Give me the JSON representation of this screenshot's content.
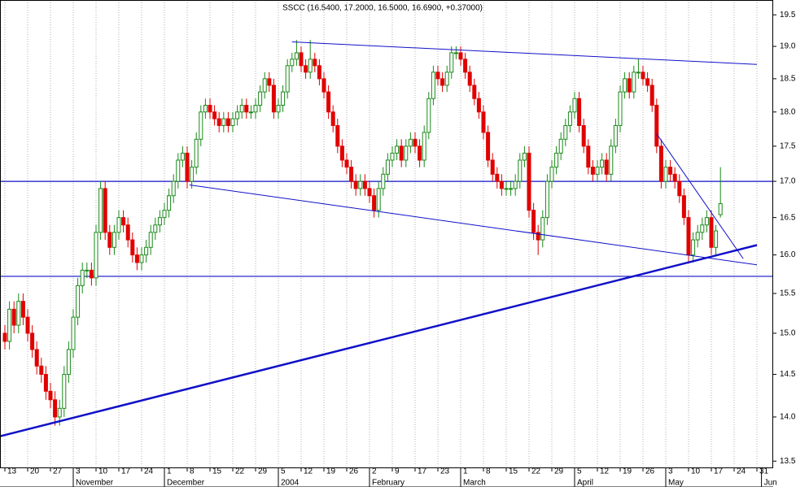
{
  "chart_data": {
    "type": "candlestick",
    "title": "SSCC (16.5400, 17.2000, 16.5000, 16.6900, +0.37000)",
    "log_scale": true,
    "up_color": "#1a8a1a",
    "down_color": "#e00000",
    "line_color": "#1010c8",
    "categories": [
      "13",
      null,
      null,
      null,
      null,
      "20",
      null,
      null,
      null,
      null,
      "27",
      null,
      null,
      null,
      null,
      "3",
      null,
      null,
      null,
      null,
      "10",
      null,
      null,
      null,
      null,
      "17",
      null,
      null,
      null,
      null,
      "24",
      null,
      null,
      null,
      null,
      "1",
      null,
      null,
      null,
      null,
      "8",
      null,
      null,
      null,
      null,
      "15",
      null,
      null,
      null,
      null,
      "22",
      null,
      null,
      null,
      null,
      "29",
      null,
      null,
      null,
      null,
      "5",
      null,
      null,
      null,
      null,
      "12",
      null,
      null,
      null,
      null,
      "19",
      null,
      null,
      null,
      null,
      "26",
      null,
      null,
      null,
      null,
      "2",
      null,
      null,
      null,
      null,
      "9",
      null,
      null,
      null,
      null,
      "17",
      null,
      null,
      null,
      null,
      "23",
      null,
      null,
      null,
      null,
      "1",
      null,
      null,
      null,
      null,
      "8",
      null,
      null,
      null,
      null,
      "15",
      null,
      null,
      null,
      null,
      "22",
      null,
      null,
      null,
      null,
      "29",
      null,
      null,
      null,
      null,
      "5",
      null,
      null,
      null,
      null,
      "12",
      null,
      null,
      null,
      null,
      "19",
      null,
      null,
      null,
      null,
      "26",
      null,
      null,
      null,
      null,
      "3",
      null,
      null,
      null,
      null,
      "10",
      null,
      null,
      null,
      null,
      "17",
      null,
      null,
      null,
      null,
      "24",
      null,
      null,
      null,
      null,
      "31",
      null
    ],
    "months": [
      null,
      null,
      null,
      null,
      null,
      null,
      null,
      null,
      null,
      null,
      null,
      null,
      null,
      null,
      null,
      "November",
      null,
      null,
      null,
      null,
      null,
      null,
      null,
      null,
      null,
      null,
      null,
      null,
      null,
      null,
      null,
      null,
      null,
      null,
      null,
      "December",
      null,
      null,
      null,
      null,
      null,
      null,
      null,
      null,
      null,
      null,
      null,
      null,
      null,
      null,
      null,
      null,
      null,
      null,
      null,
      null,
      null,
      null,
      null,
      null,
      "2004",
      null,
      null,
      null,
      null,
      null,
      null,
      null,
      null,
      null,
      null,
      null,
      null,
      null,
      null,
      null,
      null,
      null,
      null,
      null,
      "February",
      null,
      null,
      null,
      null,
      null,
      null,
      null,
      null,
      null,
      null,
      null,
      null,
      null,
      null,
      null,
      null,
      null,
      null,
      null,
      "March",
      null,
      null,
      null,
      null,
      null,
      null,
      null,
      null,
      null,
      null,
      null,
      null,
      null,
      null,
      null,
      null,
      null,
      null,
      null,
      null,
      null,
      null,
      null,
      null,
      "April",
      null,
      null,
      null,
      null,
      null,
      null,
      null,
      null,
      null,
      null,
      null,
      null,
      null,
      null,
      null,
      null,
      null,
      null,
      null,
      "May",
      null,
      null,
      null,
      null,
      null,
      null,
      null,
      null,
      null,
      null,
      null,
      null,
      null,
      null,
      null,
      null,
      null,
      null,
      null,
      null,
      "Jun"
    ],
    "open": [
      15.0,
      14.9,
      15.3,
      15.1,
      15.4,
      15.2,
      15.0,
      14.8,
      14.6,
      14.5,
      14.3,
      14.2,
      14.0,
      14.1,
      14.5,
      14.8,
      15.2,
      15.6,
      15.8,
      15.8,
      15.7,
      16.3,
      16.9,
      16.3,
      16.1,
      16.3,
      16.5,
      16.4,
      16.2,
      16.0,
      15.9,
      16.0,
      16.1,
      16.3,
      16.4,
      16.5,
      16.6,
      16.8,
      17.0,
      17.3,
      17.4,
      17.0,
      17.2,
      17.6,
      18.0,
      18.1,
      18.0,
      17.9,
      17.8,
      17.9,
      17.8,
      17.9,
      18.0,
      18.1,
      18.0,
      18.0,
      18.1,
      18.3,
      18.5,
      18.4,
      18.0,
      18.1,
      18.3,
      18.7,
      18.8,
      18.9,
      18.7,
      18.6,
      18.8,
      18.7,
      18.5,
      18.3,
      18.0,
      17.8,
      17.5,
      17.3,
      17.2,
      17.0,
      16.9,
      17.0,
      16.9,
      16.8,
      16.6,
      16.9,
      17.1,
      17.3,
      17.4,
      17.5,
      17.3,
      17.5,
      17.6,
      17.5,
      17.3,
      17.7,
      18.2,
      18.6,
      18.5,
      18.4,
      18.6,
      18.9,
      18.9,
      18.8,
      18.6,
      18.4,
      18.2,
      18.0,
      17.7,
      17.3,
      17.1,
      17.0,
      16.9,
      16.9,
      16.9,
      17.0,
      17.3,
      17.4,
      16.6,
      16.3,
      16.2,
      16.5,
      17.0,
      17.2,
      17.4,
      17.6,
      17.8,
      18.0,
      18.2,
      17.8,
      17.5,
      17.2,
      17.1,
      17.2,
      17.3,
      17.1,
      17.5,
      17.8,
      18.3,
      18.5,
      18.3,
      18.6,
      18.6,
      18.5,
      18.4,
      18.1,
      17.5,
      17.0,
      17.2,
      17.1,
      17.0,
      16.8,
      16.5,
      16.0,
      16.2,
      16.3,
      16.4,
      16.5,
      16.1,
      16.54,
      null,
      null,
      null,
      null,
      null,
      null,
      null,
      null,
      null
    ],
    "high": [
      15.1,
      15.4,
      15.4,
      15.5,
      15.5,
      15.3,
      15.1,
      14.9,
      14.7,
      14.6,
      14.4,
      14.3,
      14.2,
      14.6,
      14.9,
      15.3,
      15.7,
      15.9,
      15.9,
      15.9,
      16.4,
      17.0,
      17.0,
      16.4,
      16.4,
      16.6,
      16.6,
      16.5,
      16.3,
      16.1,
      16.1,
      16.2,
      16.4,
      16.5,
      16.6,
      16.7,
      16.9,
      17.1,
      17.4,
      17.5,
      17.5,
      17.3,
      17.7,
      18.1,
      18.2,
      18.2,
      18.1,
      18.0,
      18.0,
      18.0,
      18.0,
      18.1,
      18.2,
      18.2,
      18.1,
      18.2,
      18.4,
      18.6,
      18.6,
      18.5,
      18.2,
      18.4,
      18.8,
      18.9,
      19.1,
      19.0,
      18.8,
      19.1,
      18.9,
      18.8,
      18.6,
      18.4,
      18.1,
      17.9,
      17.6,
      17.4,
      17.3,
      17.1,
      17.1,
      17.1,
      17.0,
      16.9,
      17.0,
      17.2,
      17.4,
      17.5,
      17.6,
      17.6,
      17.6,
      17.7,
      17.7,
      17.6,
      17.8,
      18.3,
      18.7,
      18.7,
      18.6,
      18.7,
      19.0,
      19.0,
      19.0,
      18.9,
      18.7,
      18.5,
      18.3,
      18.1,
      17.8,
      17.4,
      17.2,
      17.1,
      17.0,
      17.0,
      17.1,
      17.4,
      17.5,
      17.5,
      16.7,
      16.4,
      16.6,
      17.1,
      17.3,
      17.5,
      17.7,
      17.9,
      18.1,
      18.3,
      18.3,
      17.9,
      17.6,
      17.3,
      17.3,
      17.4,
      17.4,
      17.6,
      17.9,
      18.4,
      18.6,
      18.6,
      18.7,
      18.8,
      18.7,
      18.6,
      18.5,
      18.2,
      17.6,
      17.3,
      17.3,
      17.2,
      17.1,
      16.9,
      16.6,
      16.3,
      16.4,
      16.5,
      16.6,
      16.6,
      16.4,
      17.2,
      null,
      null,
      null,
      null,
      null,
      null,
      null,
      null,
      null
    ],
    "low": [
      14.8,
      14.8,
      15.0,
      15.0,
      15.1,
      14.9,
      14.7,
      14.5,
      14.4,
      14.2,
      14.1,
      13.9,
      13.9,
      14.0,
      14.4,
      14.7,
      15.1,
      15.5,
      15.7,
      15.6,
      15.6,
      16.2,
      16.2,
      16.0,
      16.0,
      16.2,
      16.3,
      16.1,
      15.9,
      15.8,
      15.8,
      15.9,
      16.0,
      16.2,
      16.3,
      16.4,
      16.5,
      16.7,
      16.9,
      17.2,
      16.9,
      16.9,
      17.1,
      17.5,
      17.9,
      17.9,
      17.8,
      17.7,
      17.7,
      17.7,
      17.7,
      17.8,
      17.9,
      17.9,
      17.9,
      17.9,
      18.0,
      18.2,
      18.3,
      17.9,
      17.9,
      18.0,
      18.2,
      18.6,
      18.7,
      18.6,
      18.5,
      18.5,
      18.6,
      18.4,
      18.2,
      17.9,
      17.7,
      17.4,
      17.2,
      17.1,
      16.9,
      16.8,
      16.8,
      16.8,
      16.7,
      16.5,
      16.5,
      16.8,
      17.0,
      17.2,
      17.3,
      17.2,
      17.2,
      17.4,
      17.4,
      17.2,
      17.2,
      17.6,
      18.1,
      18.4,
      18.3,
      18.3,
      18.5,
      18.8,
      18.7,
      18.5,
      18.3,
      18.1,
      17.9,
      17.6,
      17.2,
      17.0,
      16.9,
      16.8,
      16.8,
      16.8,
      16.8,
      16.9,
      17.2,
      16.5,
      16.2,
      16.0,
      16.1,
      16.4,
      16.9,
      17.1,
      17.3,
      17.5,
      17.7,
      17.9,
      17.7,
      17.4,
      17.1,
      17.0,
      17.0,
      17.1,
      17.0,
      17.0,
      17.4,
      17.7,
      18.2,
      18.2,
      18.2,
      18.5,
      18.4,
      18.3,
      18.0,
      17.4,
      16.9,
      16.9,
      17.0,
      16.9,
      16.7,
      16.4,
      15.9,
      15.9,
      16.1,
      16.2,
      16.3,
      16.0,
      16.0,
      16.5,
      null,
      null,
      null,
      null,
      null,
      null,
      null,
      null,
      null
    ],
    "close": [
      14.9,
      15.3,
      15.1,
      15.4,
      15.2,
      15.0,
      14.8,
      14.6,
      14.5,
      14.3,
      14.2,
      14.0,
      14.1,
      14.5,
      14.8,
      15.2,
      15.6,
      15.8,
      15.8,
      15.7,
      16.3,
      16.9,
      16.3,
      16.1,
      16.3,
      16.5,
      16.4,
      16.2,
      16.0,
      15.9,
      16.0,
      16.1,
      16.3,
      16.4,
      16.5,
      16.6,
      16.8,
      17.0,
      17.3,
      17.4,
      17.0,
      17.2,
      17.6,
      18.0,
      18.1,
      18.0,
      17.9,
      17.8,
      17.9,
      17.8,
      17.9,
      18.0,
      18.1,
      18.0,
      18.0,
      18.1,
      18.3,
      18.5,
      18.4,
      18.0,
      18.1,
      18.3,
      18.7,
      18.8,
      18.9,
      18.7,
      18.6,
      18.8,
      18.7,
      18.5,
      18.3,
      18.0,
      17.8,
      17.5,
      17.3,
      17.2,
      17.0,
      16.9,
      17.0,
      16.9,
      16.8,
      16.6,
      16.9,
      17.1,
      17.3,
      17.4,
      17.5,
      17.3,
      17.5,
      17.6,
      17.5,
      17.3,
      17.7,
      18.2,
      18.6,
      18.5,
      18.4,
      18.6,
      18.9,
      18.9,
      18.8,
      18.6,
      18.4,
      18.2,
      18.0,
      17.7,
      17.3,
      17.1,
      17.0,
      16.9,
      16.9,
      16.9,
      17.0,
      17.3,
      17.4,
      16.6,
      16.3,
      16.2,
      16.5,
      17.0,
      17.2,
      17.4,
      17.6,
      17.8,
      18.0,
      18.2,
      17.8,
      17.5,
      17.2,
      17.1,
      17.2,
      17.3,
      17.1,
      17.5,
      17.8,
      18.3,
      18.5,
      18.3,
      18.6,
      18.6,
      18.5,
      18.4,
      18.1,
      17.5,
      17.0,
      17.2,
      17.1,
      17.0,
      16.8,
      16.5,
      16.0,
      16.2,
      16.3,
      16.4,
      16.5,
      16.1,
      16.32,
      16.69,
      null,
      null,
      null,
      null,
      null,
      null,
      null,
      null,
      null
    ],
    "hlines": [
      17.0,
      15.72
    ],
    "trendlines": [
      {
        "x": [
          63,
          165
        ],
        "y": [
          19.07,
          18.72
        ],
        "width": 1
      },
      {
        "x": [
          40.5,
          165
        ],
        "y": [
          16.95,
          15.87
        ],
        "width": 1
      },
      {
        "x": [
          -1,
          165
        ],
        "y": [
          13.78,
          16.13
        ],
        "width": 2.5
      },
      {
        "x": [
          143,
          162
        ],
        "y": [
          17.68,
          15.95
        ],
        "width": 1
      }
    ],
    "ylim": [
      13.43,
      19.74
    ],
    "yticks": [
      {
        "value": 13.5,
        "label": "13.5"
      },
      {
        "value": 14,
        "label": "14.0"
      },
      {
        "value": 14.5,
        "label": "14.5"
      },
      {
        "value": 15,
        "label": "15.0"
      },
      {
        "value": 15.5,
        "label": "15.5"
      },
      {
        "value": 16,
        "label": "16.0"
      },
      {
        "value": 16.5,
        "label": "16.5"
      },
      {
        "value": 17,
        "label": "17.0"
      },
      {
        "value": 17.5,
        "label": "17.5"
      },
      {
        "value": 18,
        "label": "18.0"
      },
      {
        "value": 18.5,
        "label": "18.5"
      },
      {
        "value": 19,
        "label": "19.0"
      },
      {
        "value": 19.5,
        "label": "19.5"
      }
    ],
    "grid": true
  }
}
